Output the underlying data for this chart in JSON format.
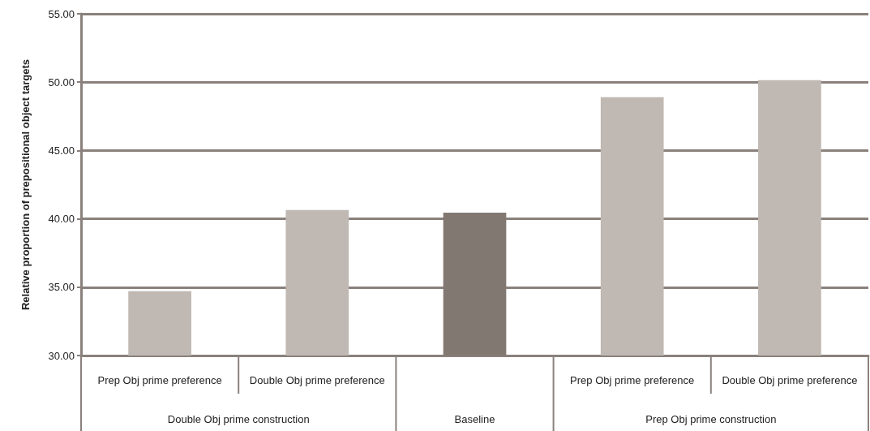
{
  "chart_data": {
    "type": "bar",
    "ylabel": "Relative proportion of prepositional object targets",
    "categories": [
      "Prep Obj prime preference",
      "Double Obj prime preference",
      null,
      "Prep Obj prime preference",
      "Double Obj prime preference"
    ],
    "values": [
      34.7,
      40.65,
      40.45,
      48.9,
      50.15
    ],
    "colors": [
      "#c0b8b2",
      "#c0b8b2",
      "#827872",
      "#c0b8b2",
      "#c0b8b2"
    ],
    "annotations": [
      "Double Obj prime construction",
      "Baseline",
      "Prep Obj prime construction"
    ],
    "ylim": [
      30,
      55
    ],
    "yticks": [
      {
        "value": 30,
        "label": "30.00"
      },
      {
        "value": 35,
        "label": "35.00"
      },
      {
        "value": 40,
        "label": "40.00"
      },
      {
        "value": 45,
        "label": "45.00"
      },
      {
        "value": 50,
        "label": "50.00"
      },
      {
        "value": 55,
        "label": "55.00"
      }
    ],
    "grid": "y"
  }
}
